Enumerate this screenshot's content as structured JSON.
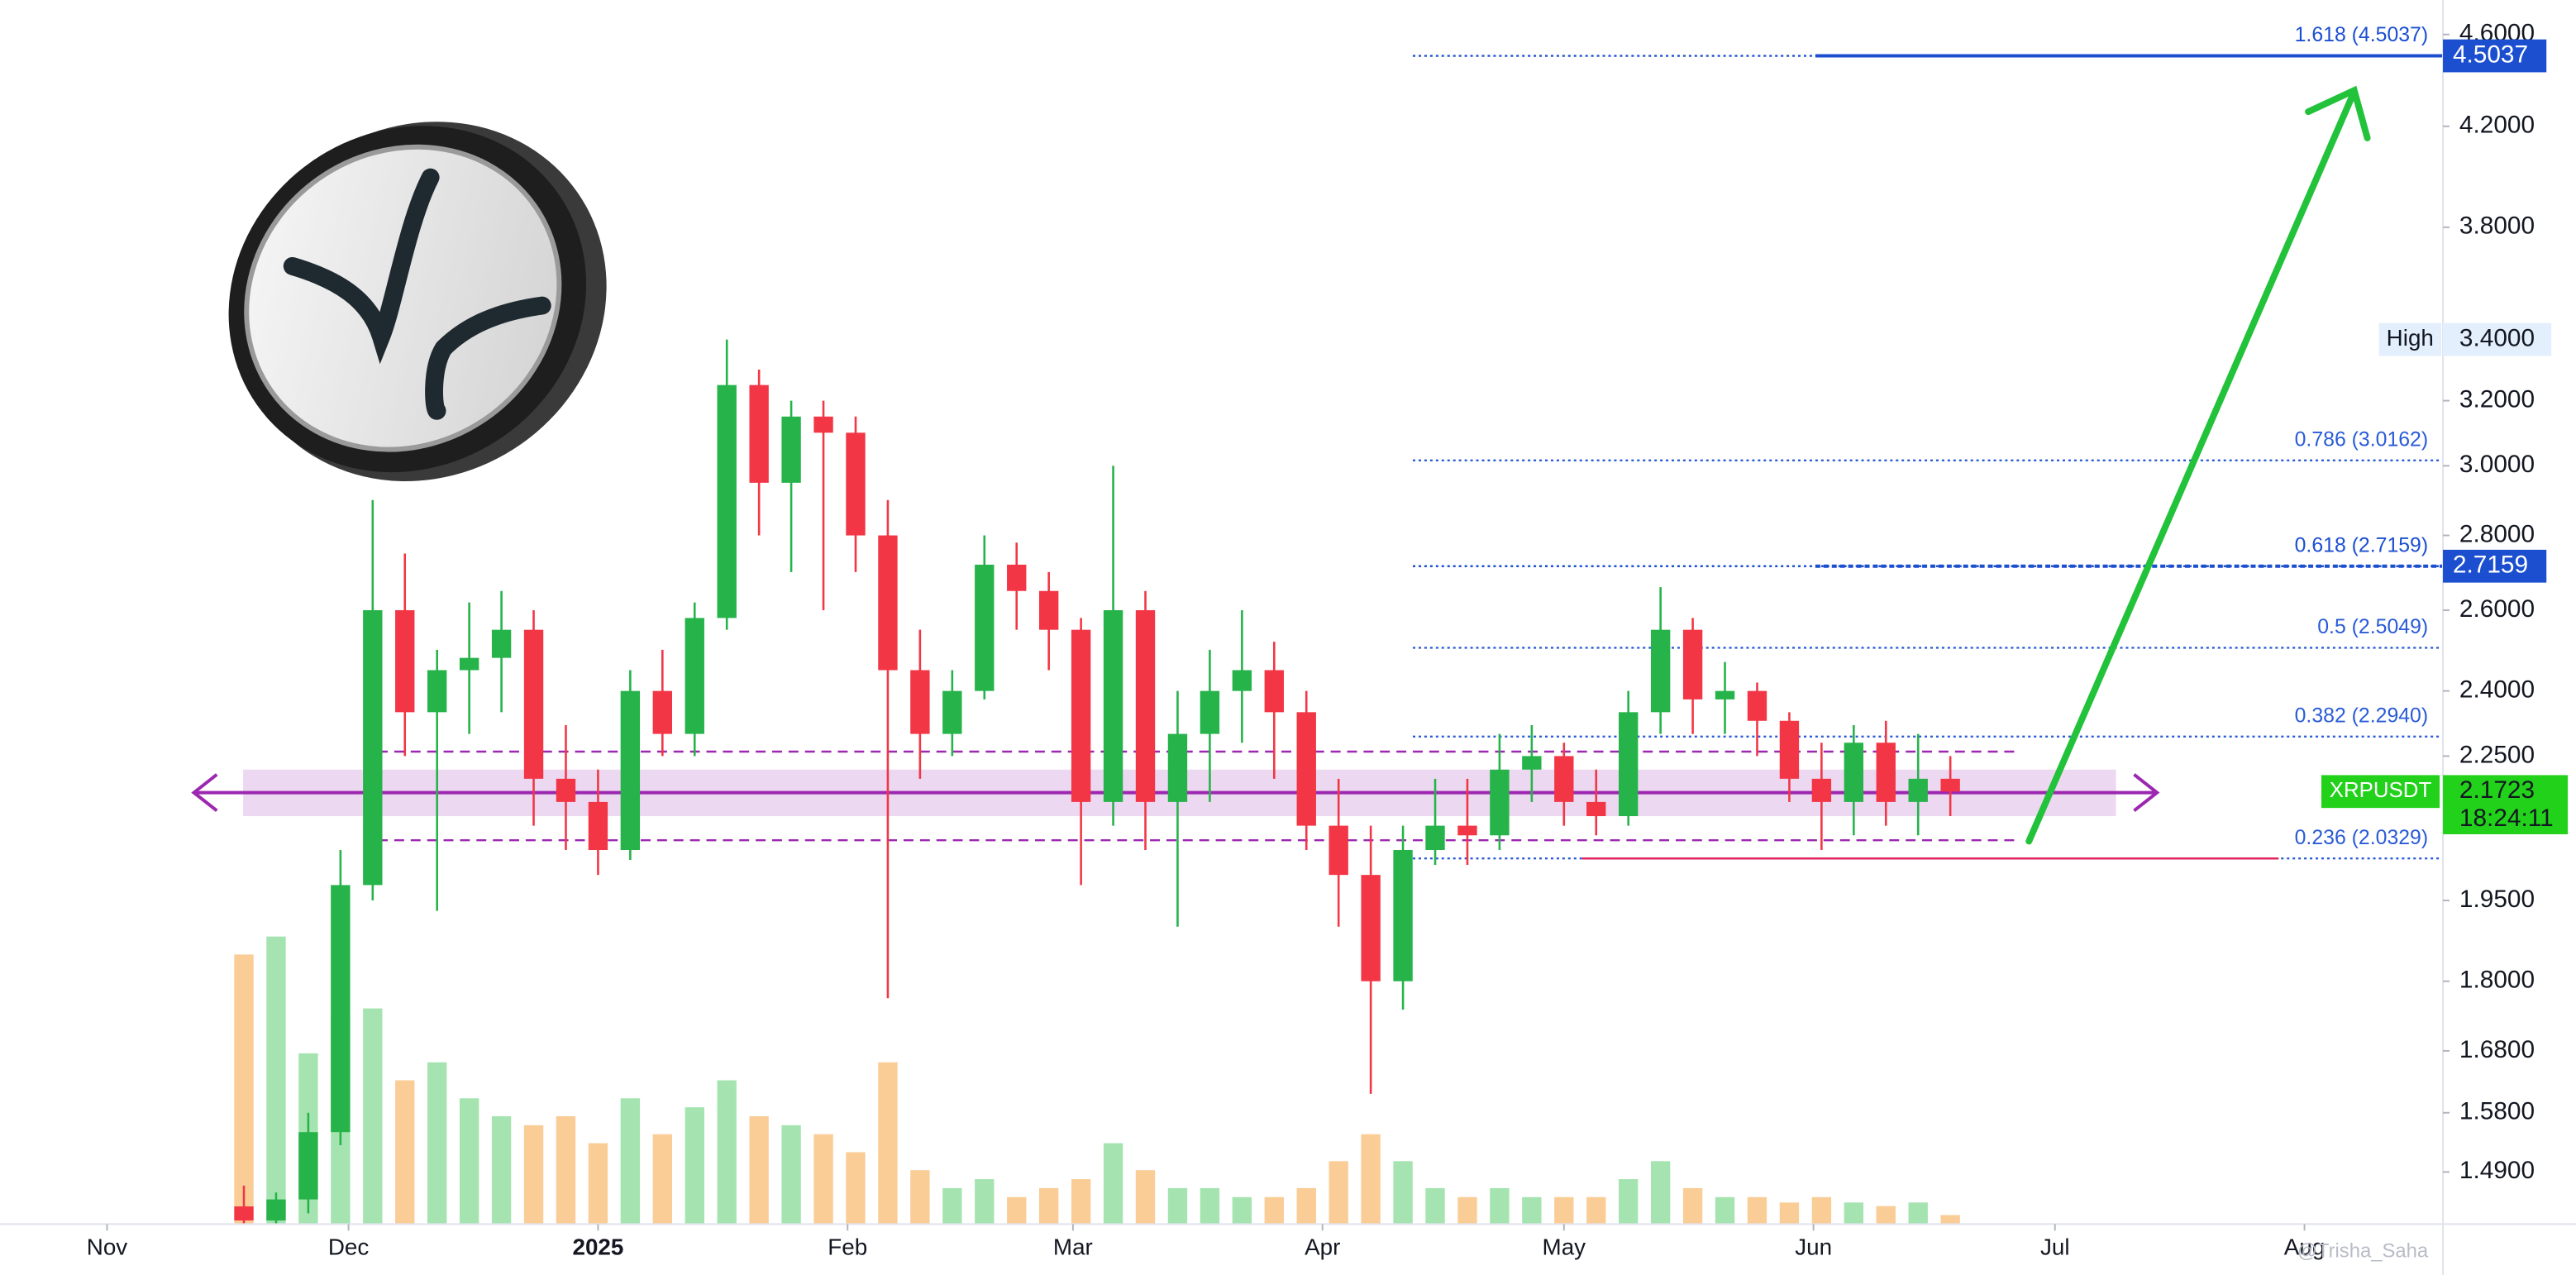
{
  "chart_data": {
    "type": "candlestick",
    "symbol": "XRPUSDT",
    "last_price": 2.1723,
    "countdown": "18:24:11",
    "watermark": "@Trisha_Saha",
    "log_scale": true,
    "up_color": "#26b34a",
    "down_color": "#f23645",
    "up_volume_color": "#7fd98f",
    "down_volume_color": "#f8b86b",
    "xlim": [
      -13.3,
      290.2
    ],
    "ylim": [
      1.415,
      4.76
    ],
    "xticks": [
      {
        "value": 0,
        "label": "Nov"
      },
      {
        "value": 30,
        "label": "Dec"
      },
      {
        "value": 61,
        "label": "2025"
      },
      {
        "value": 92,
        "label": "Feb"
      },
      {
        "value": 120,
        "label": "Mar"
      },
      {
        "value": 151,
        "label": "Apr"
      },
      {
        "value": 181,
        "label": "May"
      },
      {
        "value": 212,
        "label": "Jun"
      },
      {
        "value": 242,
        "label": "Jul"
      },
      {
        "value": 273,
        "label": "Aug"
      }
    ],
    "yticks": [
      {
        "value": 4.6,
        "label": "4.6000"
      },
      {
        "value": 4.2,
        "label": "4.2000"
      },
      {
        "value": 3.8,
        "label": "3.8000"
      },
      {
        "value": 3.2,
        "label": "3.2000"
      },
      {
        "value": 3.0,
        "label": "3.0000"
      },
      {
        "value": 2.8,
        "label": "2.8000"
      },
      {
        "value": 2.6,
        "label": "2.6000"
      },
      {
        "value": 2.4,
        "label": "2.4000"
      },
      {
        "value": 2.25,
        "label": "2.2500"
      },
      {
        "value": 1.95,
        "label": "1.9500"
      },
      {
        "value": 1.8,
        "label": "1.8000"
      },
      {
        "value": 1.68,
        "label": "1.6800"
      },
      {
        "value": 1.58,
        "label": "1.5800"
      },
      {
        "value": 1.49,
        "label": "1.4900"
      }
    ],
    "high": {
      "label": "High",
      "value": 3.4,
      "value_label": "3.4000"
    },
    "fib_levels": [
      {
        "label": "1.618 (4.5037)",
        "value": 4.5037,
        "tag": true,
        "color": "#1c4fd0"
      },
      {
        "label": "0.786 (3.0162)",
        "value": 3.0162,
        "tag": false,
        "color": "#2a5bd7"
      },
      {
        "label": "0.618 (2.7159)",
        "value": 2.7159,
        "tag": true,
        "color": "#1c4fd0"
      },
      {
        "label": "0.5 (2.5049)",
        "value": 2.5049,
        "tag": false,
        "color": "#2a5bd7"
      },
      {
        "label": "0.382 (2.2940)",
        "value": 2.294,
        "tag": false,
        "color": "#2a5bd7"
      },
      {
        "label": "0.236 (2.0329)",
        "value": 2.0329,
        "tag": false,
        "color": "#2a5bd7"
      }
    ],
    "zone": {
      "upper": 2.26,
      "lower": 2.07,
      "band": [
        2.12,
        2.22
      ],
      "level": 2.17,
      "color": "#9c27b0"
    },
    "candles": {
      "x": [
        17,
        21,
        25,
        29,
        33,
        37,
        41,
        45,
        49,
        53,
        57,
        61,
        65,
        69,
        73,
        77,
        81,
        85,
        89,
        93,
        97,
        101,
        105,
        109,
        113,
        117,
        121,
        125,
        129,
        133,
        137,
        141,
        145,
        149,
        153,
        157,
        161,
        165,
        169,
        173,
        177,
        181,
        185,
        189,
        193,
        197,
        201,
        205,
        209,
        213,
        217,
        221,
        225,
        229
      ],
      "open": [
        1.44,
        1.42,
        1.45,
        1.55,
        1.98,
        2.6,
        2.35,
        2.45,
        2.48,
        2.55,
        2.2,
        2.15,
        2.05,
        2.4,
        2.3,
        2.58,
        3.25,
        2.95,
        3.15,
        3.1,
        2.8,
        2.45,
        2.3,
        2.4,
        2.72,
        2.65,
        2.55,
        2.15,
        2.6,
        2.15,
        2.3,
        2.4,
        2.45,
        2.35,
        2.1,
        2.0,
        1.8,
        2.05,
        2.1,
        2.08,
        2.22,
        2.25,
        2.15,
        2.12,
        2.35,
        2.55,
        2.38,
        2.4,
        2.33,
        2.2,
        2.15,
        2.28,
        2.15,
        2.2
      ],
      "high": [
        1.47,
        1.46,
        1.58,
        2.05,
        2.9,
        2.75,
        2.5,
        2.62,
        2.65,
        2.6,
        2.32,
        2.22,
        2.45,
        2.5,
        2.62,
        3.4,
        3.3,
        3.2,
        3.2,
        3.15,
        2.9,
        2.55,
        2.45,
        2.8,
        2.78,
        2.7,
        2.58,
        3.0,
        2.65,
        2.4,
        2.5,
        2.6,
        2.52,
        2.4,
        2.2,
        2.1,
        2.1,
        2.2,
        2.2,
        2.3,
        2.32,
        2.28,
        2.22,
        2.4,
        2.66,
        2.58,
        2.47,
        2.42,
        2.35,
        2.28,
        2.32,
        2.33,
        2.3,
        2.25
      ],
      "low": [
        1.4,
        1.39,
        1.43,
        1.53,
        1.95,
        2.25,
        1.93,
        2.3,
        2.35,
        2.1,
        2.05,
        2.0,
        2.03,
        2.25,
        2.25,
        2.55,
        2.8,
        2.7,
        2.6,
        2.7,
        1.77,
        2.2,
        2.25,
        2.38,
        2.55,
        2.45,
        1.98,
        2.1,
        2.05,
        1.9,
        2.15,
        2.28,
        2.2,
        2.05,
        1.9,
        1.61,
        1.75,
        2.02,
        2.02,
        2.05,
        2.15,
        2.1,
        2.08,
        2.1,
        2.3,
        2.3,
        2.3,
        2.25,
        2.15,
        2.05,
        2.08,
        2.1,
        2.08,
        2.12
      ],
      "close": [
        1.42,
        1.45,
        1.55,
        1.98,
        2.6,
        2.35,
        2.45,
        2.48,
        2.55,
        2.2,
        2.15,
        2.05,
        2.4,
        2.3,
        2.58,
        3.25,
        2.95,
        3.15,
        3.1,
        2.8,
        2.45,
        2.3,
        2.4,
        2.72,
        2.65,
        2.55,
        2.15,
        2.6,
        2.15,
        2.3,
        2.4,
        2.45,
        2.35,
        2.1,
        2.0,
        1.8,
        2.05,
        2.1,
        2.08,
        2.22,
        2.25,
        2.15,
        2.12,
        2.35,
        2.55,
        2.38,
        2.4,
        2.33,
        2.2,
        2.15,
        2.28,
        2.15,
        2.2,
        2.1723
      ],
      "volume": [
        150,
        160,
        95,
        115,
        120,
        80,
        90,
        70,
        60,
        55,
        60,
        45,
        70,
        50,
        65,
        80,
        60,
        55,
        50,
        40,
        90,
        30,
        20,
        25,
        15,
        20,
        25,
        45,
        30,
        20,
        20,
        15,
        15,
        20,
        35,
        50,
        35,
        20,
        15,
        20,
        15,
        15,
        15,
        25,
        35,
        20,
        15,
        15,
        12,
        15,
        12,
        10,
        12,
        5
      ]
    }
  }
}
